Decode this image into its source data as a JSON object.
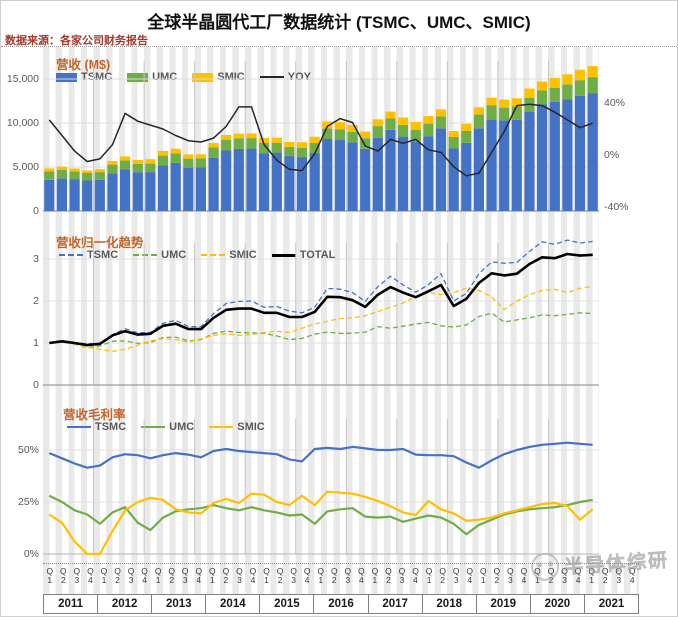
{
  "page": {
    "title": "全球半晶圆代工厂数据统计 (TSMC、UMC、SMIC)",
    "source": "数据来源：各家公司财务报告",
    "watermark": "半导体综研"
  },
  "colors": {
    "tsmc": "#4472c4",
    "umc": "#70ad47",
    "smic": "#ffc000",
    "black_line": "#262626",
    "chart_title": "#c2652a",
    "source_red": "#a23b2e"
  },
  "x_axis": {
    "quarter_letter": "Q",
    "quarter_numbers": [
      "1",
      "2",
      "3",
      "4"
    ],
    "years": [
      "2011",
      "2012",
      "2013",
      "2014",
      "2015",
      "2016",
      "2017",
      "2018",
      "2019",
      "2020",
      "2021"
    ],
    "quarters": [
      "2011Q1",
      "2011Q2",
      "2011Q3",
      "2011Q4",
      "2012Q1",
      "2012Q2",
      "2012Q3",
      "2012Q4",
      "2013Q1",
      "2013Q2",
      "2013Q3",
      "2013Q4",
      "2014Q1",
      "2014Q2",
      "2014Q3",
      "2014Q4",
      "2015Q1",
      "2015Q2",
      "2015Q3",
      "2015Q4",
      "2016Q1",
      "2016Q2",
      "2016Q3",
      "2016Q4",
      "2017Q1",
      "2017Q2",
      "2017Q3",
      "2017Q4",
      "2018Q1",
      "2018Q2",
      "2018Q3",
      "2018Q4",
      "2019Q1",
      "2019Q2",
      "2019Q3",
      "2019Q4",
      "2020Q1",
      "2020Q2",
      "2020Q3",
      "2020Q4",
      "2021Q1",
      "2021Q2",
      "2021Q3",
      "2021Q4"
    ]
  },
  "chart_data": [
    {
      "id": "revenue",
      "type": "bar",
      "stacked": true,
      "title": "营收 (M$)",
      "ylim": [
        0,
        16500
      ],
      "right_ylim": [
        -40,
        40
      ],
      "y_ticks": [
        {
          "v": 15000,
          "label": "15,000"
        },
        {
          "v": 10000,
          "label": "10,000"
        },
        {
          "v": 5000,
          "label": "5,000"
        },
        {
          "v": 0,
          "label": "0"
        }
      ],
      "right_ticks": [
        {
          "v": 40,
          "label": "40%"
        },
        {
          "v": 0,
          "label": "0%"
        },
        {
          "v": -40,
          "label": "-40%"
        }
      ],
      "legend": [
        {
          "label": "TSMC",
          "color": "#4472c4",
          "swatch": "rect"
        },
        {
          "label": "UMC",
          "color": "#70ad47",
          "swatch": "rect"
        },
        {
          "label": "SMIC",
          "color": "#ffc000",
          "swatch": "rect"
        },
        {
          "label": "YOY",
          "color": "#262626",
          "swatch": "line"
        }
      ],
      "series": [
        {
          "name": "TSMC",
          "color": "#4472c4",
          "values": [
            3550,
            3710,
            3580,
            3470,
            3530,
            4270,
            4740,
            4410,
            4420,
            5210,
            5470,
            4930,
            4950,
            6040,
            6870,
            7060,
            7090,
            6570,
            6640,
            6240,
            6120,
            6580,
            8180,
            8110,
            7800,
            7060,
            8320,
            9210,
            8460,
            7850,
            8500,
            9400,
            7100,
            7750,
            9400,
            10390,
            10310,
            10380,
            11300,
            12100,
            12400,
            12700,
            13100,
            13400
          ]
        },
        {
          "name": "UMC",
          "color": "#70ad47",
          "values": [
            960,
            980,
            930,
            850,
            890,
            1000,
            1010,
            950,
            970,
            1080,
            1090,
            1010,
            1040,
            1180,
            1230,
            1200,
            1190,
            1180,
            1120,
            1040,
            1070,
            1160,
            1210,
            1180,
            1180,
            1210,
            1330,
            1300,
            1340,
            1390,
            1430,
            1350,
            1320,
            1370,
            1560,
            1640,
            1440,
            1490,
            1540,
            1600,
            1610,
            1680,
            1760,
            1820
          ]
        },
        {
          "name": "SMIC",
          "color": "#ffc000",
          "values": [
            330,
            350,
            320,
            285,
            335,
            425,
            460,
            440,
            500,
            535,
            520,
            490,
            450,
            510,
            550,
            530,
            530,
            560,
            570,
            560,
            630,
            690,
            775,
            815,
            790,
            750,
            770,
            790,
            830,
            890,
            850,
            790,
            670,
            790,
            820,
            840,
            905,
            940,
            1080,
            1020,
            1100,
            1150,
            1200,
            1250
          ]
        }
      ],
      "line_series": {
        "name": "YOY",
        "color": "#262626",
        "axis": "right",
        "unit": "%",
        "values": [
          27,
          15,
          3,
          -5,
          -3,
          8,
          32,
          26,
          23,
          20,
          15,
          11,
          10,
          13,
          22,
          37,
          37,
          8,
          -4,
          -11,
          -12,
          1,
          22,
          28,
          25,
          7,
          3,
          12,
          9,
          12,
          4,
          2,
          -9,
          -16,
          -14,
          2,
          18,
          38,
          39,
          38,
          33,
          27,
          21,
          24.5
        ]
      }
    },
    {
      "id": "normalized",
      "type": "line",
      "title": "营收归一化趋势",
      "ylim": [
        0,
        3.6
      ],
      "y_ticks": [
        {
          "v": 3,
          "label": "3"
        },
        {
          "v": 2,
          "label": "2"
        },
        {
          "v": 1,
          "label": "1"
        },
        {
          "v": 0,
          "label": "0"
        }
      ],
      "legend": [
        {
          "label": "TSMC",
          "color": "#4472c4",
          "swatch": "dash"
        },
        {
          "label": "UMC",
          "color": "#70ad47",
          "swatch": "dash"
        },
        {
          "label": "SMIC",
          "color": "#ffc000",
          "swatch": "dash"
        },
        {
          "label": "TOTAL",
          "color": "#000000",
          "swatch": "line-bold"
        }
      ],
      "series": [
        {
          "name": "TSMC",
          "color": "#4472c4",
          "style": "dashed",
          "values": [
            1.0,
            1.05,
            1.01,
            0.98,
            0.99,
            1.2,
            1.34,
            1.24,
            1.25,
            1.47,
            1.54,
            1.39,
            1.39,
            1.7,
            1.94,
            1.99,
            2.0,
            1.85,
            1.87,
            1.76,
            1.72,
            1.85,
            2.3,
            2.28,
            2.2,
            1.99,
            2.34,
            2.59,
            2.38,
            2.21,
            2.39,
            2.65,
            2.0,
            2.18,
            2.65,
            2.93,
            2.9,
            2.92,
            3.18,
            3.41,
            3.35,
            3.45,
            3.38,
            3.42
          ]
        },
        {
          "name": "UMC",
          "color": "#70ad47",
          "style": "dashed",
          "values": [
            1.0,
            1.02,
            0.97,
            0.89,
            0.93,
            1.04,
            1.05,
            0.99,
            1.01,
            1.13,
            1.14,
            1.05,
            1.08,
            1.23,
            1.28,
            1.25,
            1.24,
            1.23,
            1.17,
            1.08,
            1.11,
            1.21,
            1.26,
            1.23,
            1.23,
            1.26,
            1.39,
            1.35,
            1.4,
            1.45,
            1.49,
            1.41,
            1.38,
            1.43,
            1.63,
            1.71,
            1.5,
            1.55,
            1.6,
            1.67,
            1.65,
            1.68,
            1.72,
            1.7
          ]
        },
        {
          "name": "SMIC",
          "color": "#ffc000",
          "style": "dashed",
          "values": [
            1.0,
            1.03,
            0.97,
            0.9,
            0.85,
            0.8,
            0.85,
            0.95,
            1.05,
            1.1,
            1.08,
            1.02,
            1.1,
            1.18,
            1.22,
            1.18,
            1.2,
            1.25,
            1.28,
            1.25,
            1.35,
            1.45,
            1.52,
            1.58,
            1.6,
            1.65,
            1.75,
            1.85,
            1.95,
            2.1,
            2.2,
            2.15,
            2.2,
            2.3,
            2.25,
            2.1,
            1.8,
            2.0,
            2.15,
            2.25,
            2.28,
            2.2,
            2.3,
            2.35
          ]
        },
        {
          "name": "TOTAL",
          "color": "#000000",
          "style": "solid-bold",
          "values": [
            1.0,
            1.04,
            1.0,
            0.95,
            0.98,
            1.18,
            1.28,
            1.2,
            1.22,
            1.41,
            1.46,
            1.33,
            1.33,
            1.6,
            1.79,
            1.82,
            1.82,
            1.72,
            1.72,
            1.62,
            1.62,
            1.74,
            2.1,
            2.09,
            2.02,
            1.86,
            2.15,
            2.33,
            2.2,
            2.09,
            2.23,
            2.38,
            1.88,
            2.05,
            2.43,
            2.66,
            2.61,
            2.65,
            2.88,
            3.04,
            3.02,
            3.12,
            3.08,
            3.1
          ]
        }
      ]
    },
    {
      "id": "gross-margin",
      "type": "line",
      "title": "营收毛利率",
      "ylim": [
        0,
        58
      ],
      "unit": "%",
      "y_ticks": [
        {
          "v": 50,
          "label": "50%"
        },
        {
          "v": 25,
          "label": "25%"
        },
        {
          "v": 0,
          "label": "0%"
        }
      ],
      "legend": [
        {
          "label": "TSMC",
          "color": "#4472c4",
          "swatch": "line"
        },
        {
          "label": "UMC",
          "color": "#70ad47",
          "swatch": "line"
        },
        {
          "label": "SMIC",
          "color": "#ffc000",
          "swatch": "line"
        }
      ],
      "series": [
        {
          "name": "TSMC",
          "color": "#4472c4",
          "style": "solid",
          "values": [
            48.5,
            46,
            43.5,
            41.5,
            42.5,
            46.5,
            48,
            47.5,
            46,
            47.5,
            48.5,
            47.8,
            46.5,
            49.5,
            50.5,
            49.5,
            49,
            48.5,
            48,
            45.5,
            44.5,
            50.5,
            51,
            50.5,
            51.5,
            50.8,
            50,
            50,
            50.5,
            47.8,
            47.5,
            47.5,
            47,
            44,
            41.5,
            45,
            48,
            50,
            51.5,
            52.5,
            53,
            53.5,
            53,
            52.5
          ]
        },
        {
          "name": "UMC",
          "color": "#70ad47",
          "style": "solid",
          "values": [
            28,
            25,
            21,
            19,
            14.5,
            20,
            22.5,
            15,
            11.5,
            17.5,
            20.5,
            21.5,
            22,
            23.5,
            22,
            21,
            22.5,
            21,
            20,
            18.5,
            19,
            14.5,
            20.5,
            21.5,
            22,
            18,
            17.5,
            18,
            15.5,
            17,
            18.5,
            17.5,
            14.5,
            9.5,
            14,
            16.5,
            19,
            20.5,
            21.5,
            22,
            22.5,
            23.5,
            25,
            26
          ]
        },
        {
          "name": "SMIC",
          "color": "#ffc000",
          "style": "solid",
          "values": [
            19,
            15,
            6,
            0,
            0,
            11,
            21,
            25,
            27,
            26,
            21.5,
            20,
            19.5,
            24.5,
            26.5,
            24.5,
            29,
            28.5,
            25,
            23.5,
            28,
            23.5,
            30,
            29.5,
            29,
            27.5,
            25.5,
            23,
            20,
            18.7,
            25.5,
            21.5,
            19.5,
            16,
            16.5,
            17.5,
            19.5,
            21,
            22.5,
            24,
            24.5,
            23,
            16.5,
            21.5
          ]
        }
      ]
    }
  ]
}
